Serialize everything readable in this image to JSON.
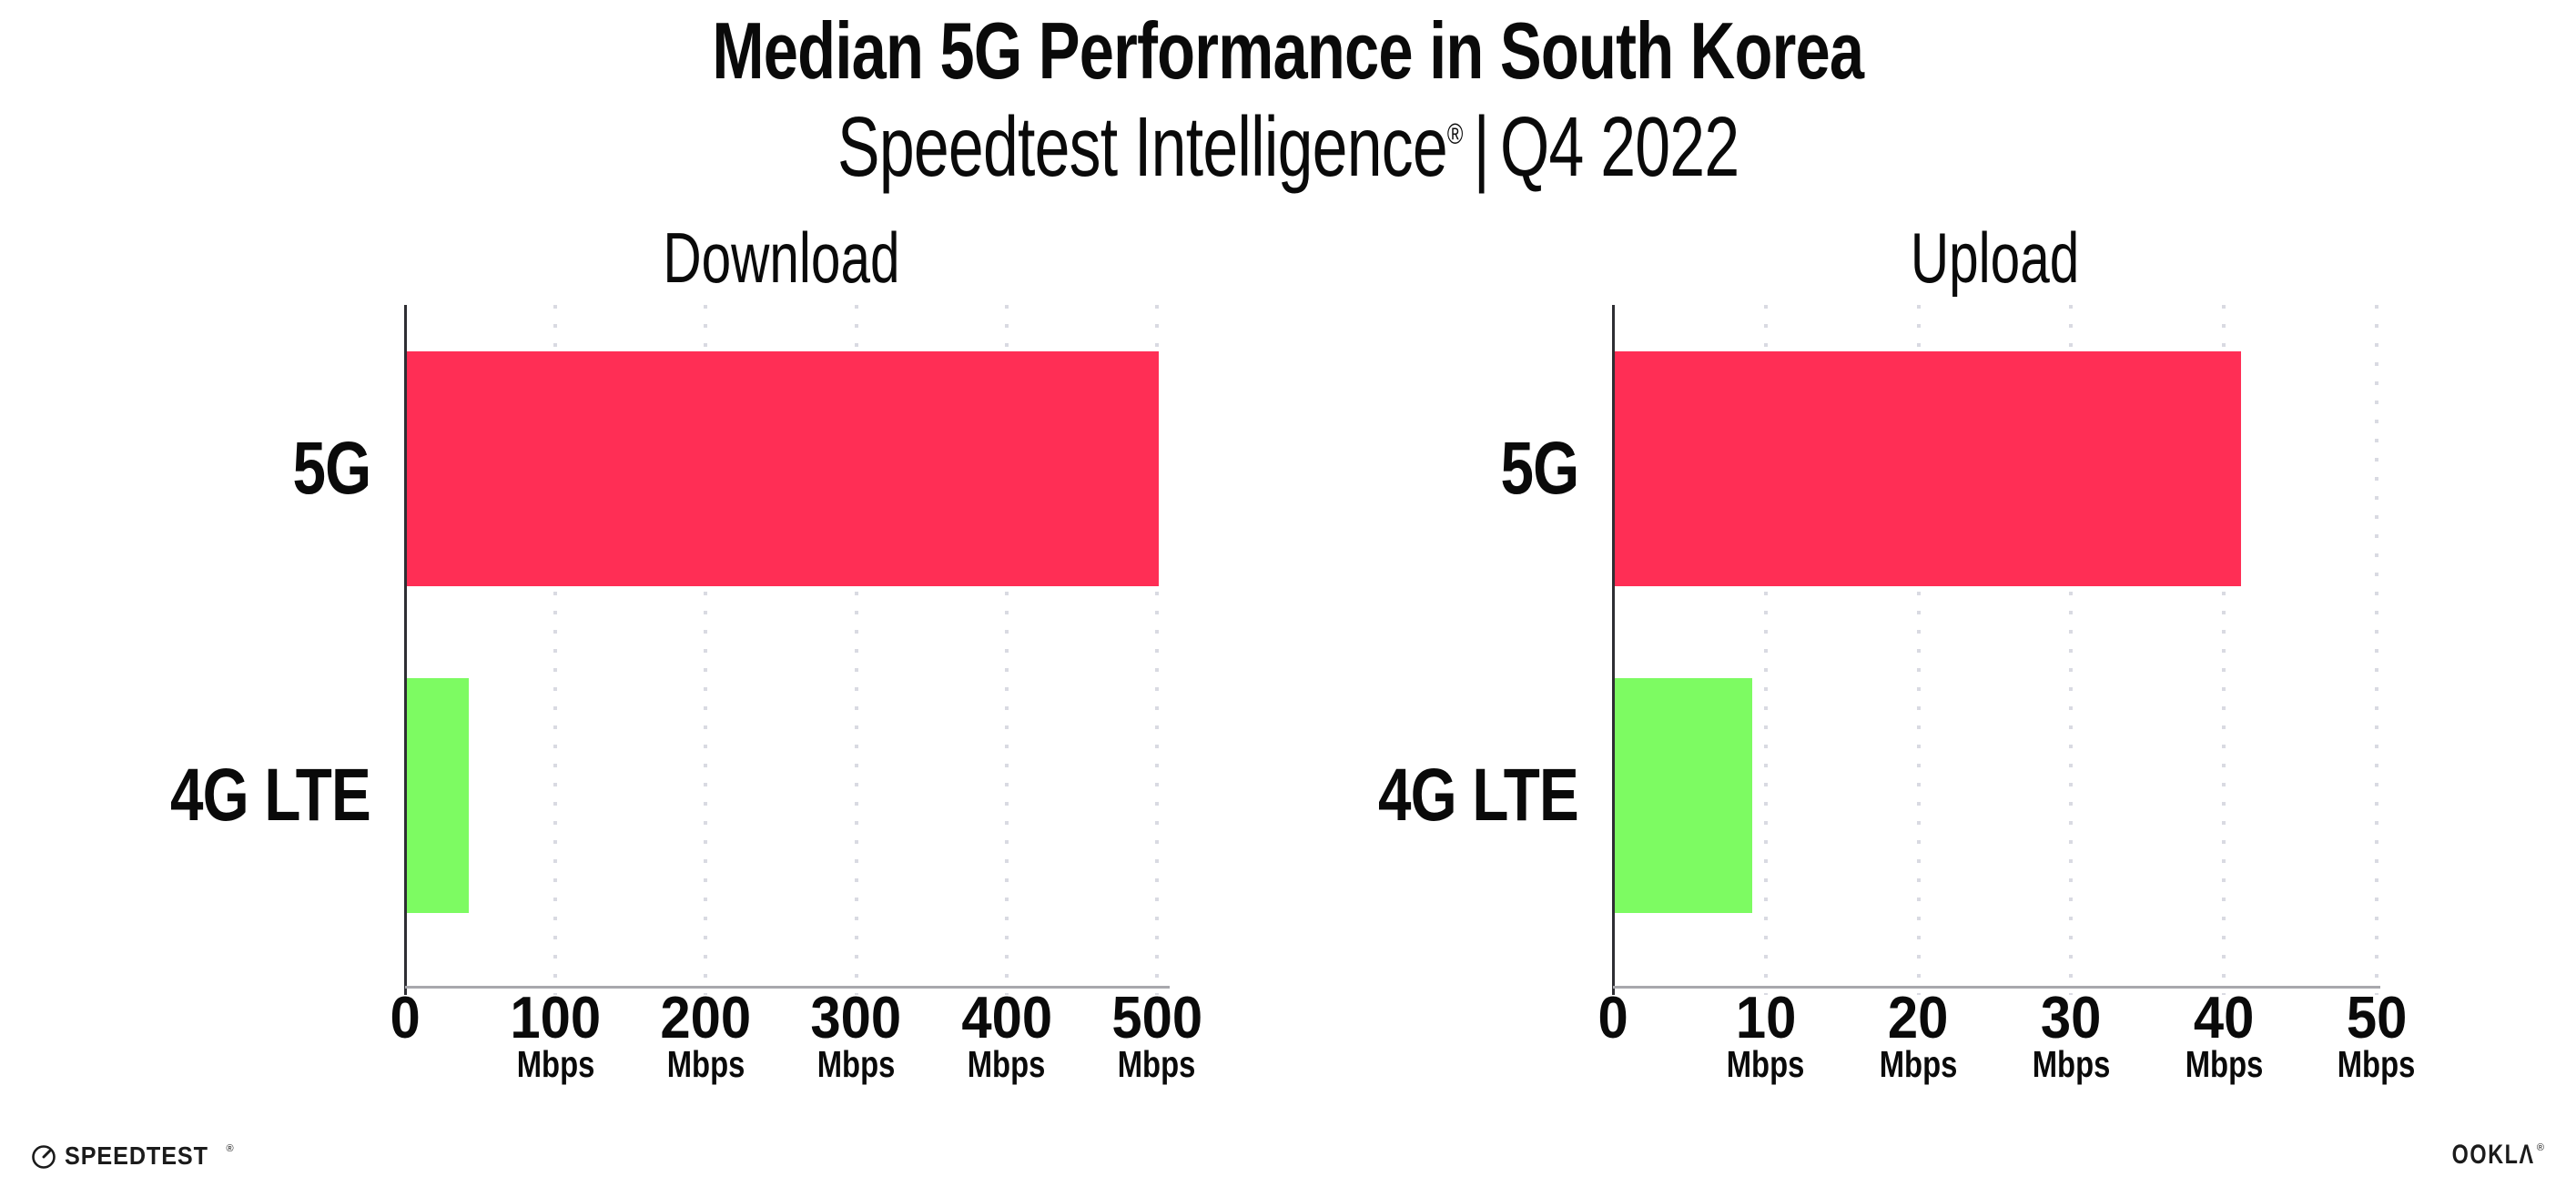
{
  "title": "Median 5G Performance in South Korea",
  "subtitle": {
    "brand": "Speedtest Intelligence",
    "mark": "®",
    "divider": "|",
    "period": "Q4 2022"
  },
  "colors": {
    "bar_5g": "#FF2E55",
    "bar_4g_lte": "#7DFB62",
    "y_axis": "#2E2E33",
    "x_axis": "#A8A8AD",
    "gridline": "#D9DAE2",
    "text": "#0A0A0A"
  },
  "chart_data": [
    {
      "type": "bar",
      "orientation": "horizontal",
      "title": "Download",
      "categories": [
        "5G",
        "4G LTE"
      ],
      "values": [
        500,
        41
      ],
      "unit": "Mbps",
      "xlim": [
        0,
        500
      ],
      "xticks": [
        0,
        100,
        200,
        300,
        400,
        500
      ],
      "tick_unit_label": "Mbps",
      "grid": "dotted-vertical",
      "legend": "none",
      "series_colors": [
        "#FF2E55",
        "#7DFB62"
      ]
    },
    {
      "type": "bar",
      "orientation": "horizontal",
      "title": "Upload",
      "categories": [
        "5G",
        "4G LTE"
      ],
      "values": [
        41,
        9
      ],
      "unit": "Mbps",
      "xlim": [
        0,
        50
      ],
      "xticks": [
        0,
        10,
        20,
        30,
        40,
        50
      ],
      "tick_unit_label": "Mbps",
      "grid": "dotted-vertical",
      "legend": "none",
      "series_colors": [
        "#FF2E55",
        "#7DFB62"
      ]
    }
  ],
  "footer": {
    "speedtest_label": "SPEEDTEST",
    "speedtest_mark": "®",
    "ookla_label": "OOKLΛ",
    "ookla_mark": "®"
  }
}
